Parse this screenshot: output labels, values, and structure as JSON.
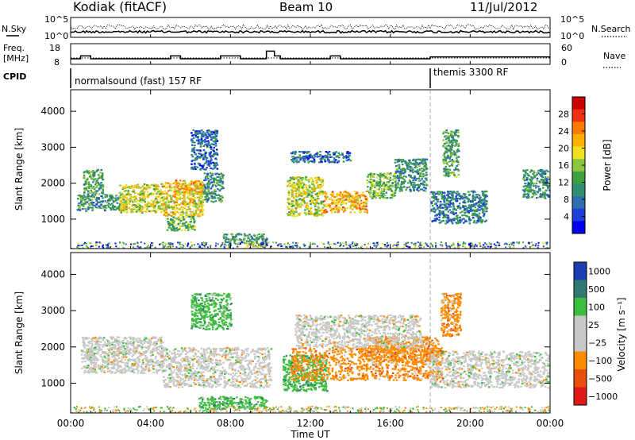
{
  "header": {
    "station": "Kodiak (fitACF)",
    "beam": "Beam 10",
    "date": "11/Jul/2012"
  },
  "summary": {
    "nsky_label": "N.Sky",
    "nsearch_label": "N.Search",
    "noise_ticks_left": [
      "10^5",
      "10^0"
    ],
    "noise_ticks_right": [
      "10^5",
      "10^0"
    ],
    "freq_label_1": "Freq.",
    "freq_label_2": "[MHz]",
    "freq_ticks": [
      "18",
      "8"
    ],
    "nave_label": "Nave",
    "nave_ticks": [
      "60",
      "0"
    ],
    "cpid_label": "CPID",
    "cpid_segments": [
      {
        "text": "normalsound (fast) 157 RF",
        "start": 0,
        "end": 18
      },
      {
        "text": "themis 3300 RF",
        "start": 18,
        "end": 24
      }
    ],
    "freq_step_mhz": [
      [
        0,
        10.5
      ],
      [
        0.5,
        12
      ],
      [
        1,
        10.5
      ],
      [
        5,
        12
      ],
      [
        5.5,
        10.5
      ],
      [
        7.5,
        12
      ],
      [
        8.5,
        10.5
      ],
      [
        9.8,
        14.5
      ],
      [
        10.2,
        12
      ],
      [
        10.5,
        10.5
      ],
      [
        13,
        12
      ],
      [
        13.5,
        10.5
      ],
      [
        18,
        11.5
      ],
      [
        24,
        11.5
      ]
    ]
  },
  "chart_data": [
    {
      "type": "heatmap",
      "title": "",
      "xlabel": "Time UT",
      "ylabel": "Slant Range [km]",
      "x_ticks": [
        "00:00",
        "04:00",
        "08:00",
        "12:00",
        "16:00",
        "20:00",
        "00:00"
      ],
      "x_tick_hours": [
        0,
        4,
        8,
        12,
        16,
        20,
        24
      ],
      "y_ticks": [
        1000,
        2000,
        3000,
        4000
      ],
      "ylim": [
        180,
        4600
      ],
      "xlim": [
        0,
        24
      ],
      "colorbar": {
        "label": "Power [dB]",
        "ticks": [
          "4",
          "8",
          "12",
          "16",
          "20",
          "24",
          "28"
        ],
        "range": [
          0,
          32
        ]
      },
      "regions": [
        {
          "t0": 0.6,
          "t1": 1.6,
          "r0": 1700,
          "r1": 2400,
          "value": 12
        },
        {
          "t0": 0.3,
          "t1": 2.5,
          "r0": 1250,
          "r1": 1700,
          "value": 10
        },
        {
          "t0": 2.4,
          "t1": 4.6,
          "r0": 1200,
          "r1": 2000,
          "value": 18
        },
        {
          "t0": 4.6,
          "t1": 6.6,
          "r0": 1100,
          "r1": 2050,
          "value": 20
        },
        {
          "t0": 4.8,
          "t1": 6.2,
          "r0": 700,
          "r1": 1100,
          "value": 14
        },
        {
          "t0": 6.6,
          "t1": 7.6,
          "r0": 1500,
          "r1": 2300,
          "value": 10
        },
        {
          "t0": 5.2,
          "t1": 6.6,
          "r0": 1700,
          "r1": 2100,
          "value": 22
        },
        {
          "t0": 6.0,
          "t1": 7.3,
          "r0": 2400,
          "r1": 3500,
          "value": 6
        },
        {
          "t0": 7.6,
          "t1": 9.8,
          "r0": 330,
          "r1": 620,
          "value": 10
        },
        {
          "t0": 8.8,
          "t1": 9.8,
          "r0": 250,
          "r1": 350,
          "value": 18
        },
        {
          "t0": 10.8,
          "t1": 12.6,
          "r0": 1100,
          "r1": 2200,
          "value": 18
        },
        {
          "t0": 12.6,
          "t1": 14.8,
          "r0": 1200,
          "r1": 1800,
          "value": 22
        },
        {
          "t0": 14.8,
          "t1": 16.2,
          "r0": 1600,
          "r1": 2300,
          "value": 14
        },
        {
          "t0": 16.2,
          "t1": 17.8,
          "r0": 1800,
          "r1": 2700,
          "value": 10
        },
        {
          "t0": 18.0,
          "t1": 20.8,
          "r0": 900,
          "r1": 1800,
          "value": 8
        },
        {
          "t0": 18.6,
          "t1": 19.4,
          "r0": 2200,
          "r1": 3500,
          "value": 12
        },
        {
          "t0": 22.6,
          "t1": 24.0,
          "r0": 1600,
          "r1": 2400,
          "value": 10
        },
        {
          "t0": 11.0,
          "t1": 14.0,
          "r0": 2600,
          "r1": 2900,
          "value": 6
        }
      ]
    },
    {
      "type": "heatmap",
      "title": "",
      "xlabel": "Time UT",
      "ylabel": "Slant Range [km]",
      "x_ticks": [
        "00:00",
        "04:00",
        "08:00",
        "12:00",
        "16:00",
        "20:00",
        "00:00"
      ],
      "x_tick_hours": [
        0,
        4,
        8,
        12,
        16,
        20,
        24
      ],
      "y_ticks": [
        1000,
        2000,
        3000,
        4000
      ],
      "ylim": [
        180,
        4600
      ],
      "xlim": [
        0,
        24
      ],
      "colorbar": {
        "label": "Velocity [m s⁻¹]",
        "ticks": [
          "1000",
          "500",
          "100",
          "25",
          "−25",
          "−100",
          "−500",
          "−1000"
        ]
      },
      "regions": [
        {
          "t0": 0.5,
          "t1": 4.6,
          "r0": 1300,
          "r1": 2300,
          "value": 0
        },
        {
          "t0": 4.6,
          "t1": 10.0,
          "r0": 900,
          "r1": 2000,
          "value": 0
        },
        {
          "t0": 6.0,
          "t1": 8.0,
          "r0": 2500,
          "r1": 3500,
          "value": 150
        },
        {
          "t0": 6.4,
          "t1": 9.8,
          "r0": 300,
          "r1": 650,
          "value": 150
        },
        {
          "t0": 10.6,
          "t1": 12.8,
          "r0": 800,
          "r1": 1800,
          "value": 150
        },
        {
          "t0": 11.0,
          "t1": 18.6,
          "r0": 1100,
          "r1": 2000,
          "value": -150
        },
        {
          "t0": 14.8,
          "t1": 18.4,
          "r0": 1600,
          "r1": 2300,
          "value": -150
        },
        {
          "t0": 11.2,
          "t1": 17.5,
          "r0": 2000,
          "r1": 2900,
          "value": 0
        },
        {
          "t0": 18.0,
          "t1": 24.0,
          "r0": 900,
          "r1": 1900,
          "value": 0
        },
        {
          "t0": 18.5,
          "t1": 19.5,
          "r0": 2300,
          "r1": 3500,
          "value": -150
        }
      ]
    }
  ]
}
